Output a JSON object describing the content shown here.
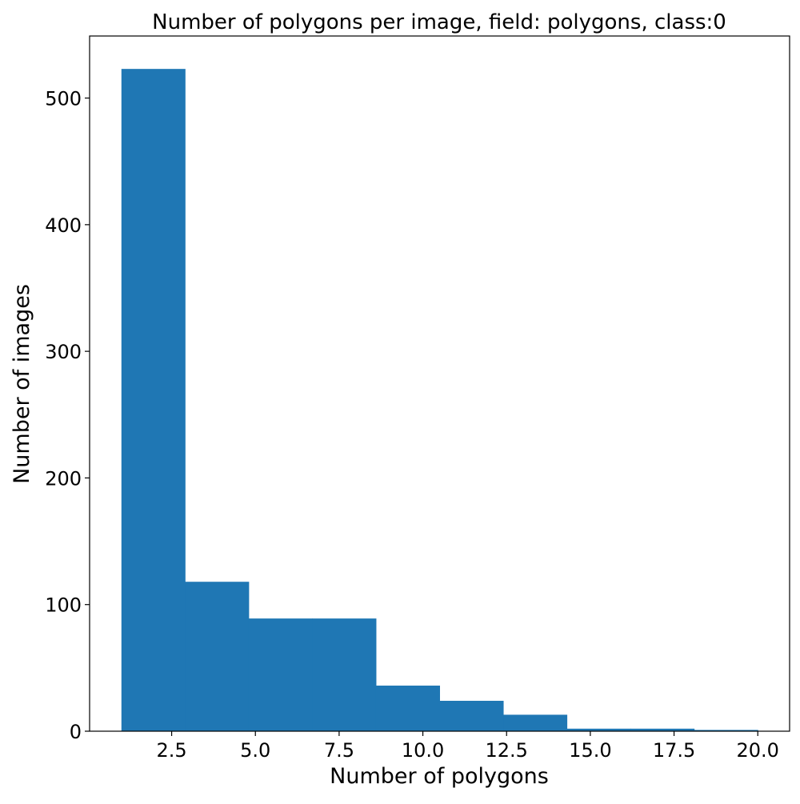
{
  "chart_data": {
    "type": "bar",
    "title": "Number of polygons per image, field: polygons, class:0",
    "xlabel": "Number of polygons",
    "ylabel": "Number of images",
    "bins": [
      {
        "x0": 1.0,
        "x1": 2.9,
        "value": 523
      },
      {
        "x0": 2.9,
        "x1": 4.8,
        "value": 118
      },
      {
        "x0": 4.8,
        "x1": 6.7,
        "value": 89
      },
      {
        "x0": 6.7,
        "x1": 8.6,
        "value": 89
      },
      {
        "x0": 8.6,
        "x1": 10.5,
        "value": 36
      },
      {
        "x0": 10.5,
        "x1": 12.4,
        "value": 24
      },
      {
        "x0": 12.4,
        "x1": 14.3,
        "value": 13
      },
      {
        "x0": 14.3,
        "x1": 16.2,
        "value": 2
      },
      {
        "x0": 16.2,
        "x1": 18.1,
        "value": 2
      },
      {
        "x0": 18.1,
        "x1": 20.0,
        "value": 1
      }
    ],
    "xlim": [
      0.05,
      20.95
    ],
    "ylim": [
      0,
      549
    ],
    "xticks": [
      2.5,
      5.0,
      7.5,
      10.0,
      12.5,
      15.0,
      17.5,
      20.0
    ],
    "xtick_labels": [
      "2.5",
      "5.0",
      "7.5",
      "10.0",
      "12.5",
      "15.0",
      "17.5",
      "20.0"
    ],
    "yticks": [
      0,
      100,
      200,
      300,
      400,
      500
    ],
    "ytick_labels": [
      "0",
      "100",
      "200",
      "300",
      "400",
      "500"
    ],
    "grid": false,
    "legend": false,
    "colors": {
      "bar": "#1f77b4",
      "axis": "#000000",
      "background": "#ffffff"
    }
  }
}
